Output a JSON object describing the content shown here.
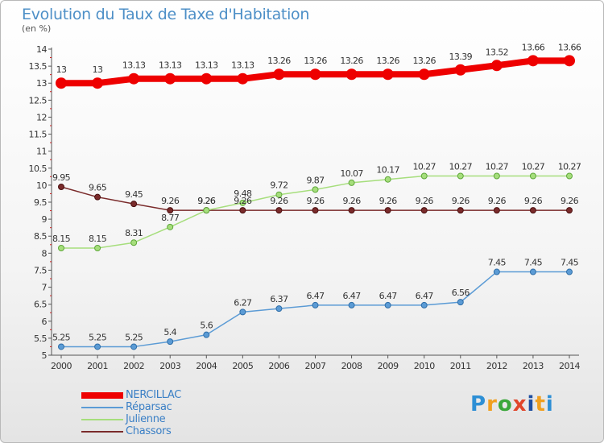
{
  "title": "Evolution du Taux de Taxe d'Habitation",
  "subtitle": "(en %)",
  "logo": [
    "P",
    "r",
    "o",
    "x",
    "i",
    "t",
    "i"
  ],
  "logo_colors": [
    "#2d8fd5",
    "#f0a020",
    "#3aa73a",
    "#e0452a",
    "#1f4fa0",
    "#f0a020",
    "#2d8fd5"
  ],
  "chart_data": {
    "type": "line",
    "title": "Evolution du Taux de Taxe d'Habitation",
    "ylabel": "(en %)",
    "xlabel": "",
    "ylim": [
      5,
      14
    ],
    "grid": false,
    "yticks": [
      "5",
      "5.5",
      "6",
      "6.5",
      "7",
      "7.5",
      "8",
      "8.5",
      "9",
      "9.5",
      "10",
      "10.5",
      "11",
      "11.5",
      "12",
      "12.5",
      "13",
      "13.5",
      "14"
    ],
    "categories": [
      "2000",
      "2001",
      "2002",
      "2003",
      "2004",
      "2005",
      "2006",
      "2007",
      "2008",
      "2009",
      "2010",
      "2011",
      "2012",
      "2013",
      "2014"
    ],
    "series": [
      {
        "name": "NERCILLAC",
        "color": "#ee0000",
        "values": [
          13,
          13,
          13.13,
          13.13,
          13.13,
          13.13,
          13.26,
          13.26,
          13.26,
          13.26,
          13.26,
          13.39,
          13.52,
          13.66,
          13.66
        ],
        "labels": [
          "13",
          "13",
          "13.13",
          "13.13",
          "13.13",
          "13.13",
          "13.26",
          "13.26",
          "13.26",
          "13.26",
          "13.26",
          "13.39",
          "13.52",
          "13.66",
          "13.66"
        ]
      },
      {
        "name": "Réparsac",
        "color": "#5b9bd5",
        "values": [
          5.25,
          5.25,
          5.25,
          5.4,
          5.6,
          6.27,
          6.37,
          6.47,
          6.47,
          6.47,
          6.47,
          6.56,
          7.45,
          7.45,
          7.45
        ],
        "labels": [
          "5.25",
          "5.25",
          "5.25",
          "5.4",
          "5.6",
          "6.27",
          "6.37",
          "6.47",
          "6.47",
          "6.47",
          "6.47",
          "6.56",
          "7.45",
          "7.45",
          "7.45"
        ]
      },
      {
        "name": "Julienne",
        "color": "#a6de7c",
        "values": [
          8.15,
          8.15,
          8.31,
          8.77,
          9.26,
          9.48,
          9.72,
          9.87,
          10.07,
          10.17,
          10.27,
          10.27,
          10.27,
          10.27,
          10.27
        ],
        "labels": [
          "8.15",
          "8.15",
          "8.31",
          "8.77",
          "9.26",
          "9.48",
          "9.72",
          "9.87",
          "10.07",
          "10.17",
          "10.27",
          "10.27",
          "10.27",
          "10.27",
          "10.27"
        ]
      },
      {
        "name": "Chassors",
        "color": "#7a2b2b",
        "values": [
          9.95,
          9.65,
          9.45,
          9.26,
          9.26,
          9.26,
          9.26,
          9.26,
          9.26,
          9.26,
          9.26,
          9.26,
          9.26,
          9.26,
          9.26
        ],
        "labels": [
          "9.95",
          "9.65",
          "9.45",
          "9.26",
          "9.26",
          "9.26",
          "9.26",
          "9.26",
          "9.26",
          "9.26",
          "9.26",
          "9.26",
          "9.26",
          "9.26",
          "9.26"
        ]
      }
    ]
  }
}
